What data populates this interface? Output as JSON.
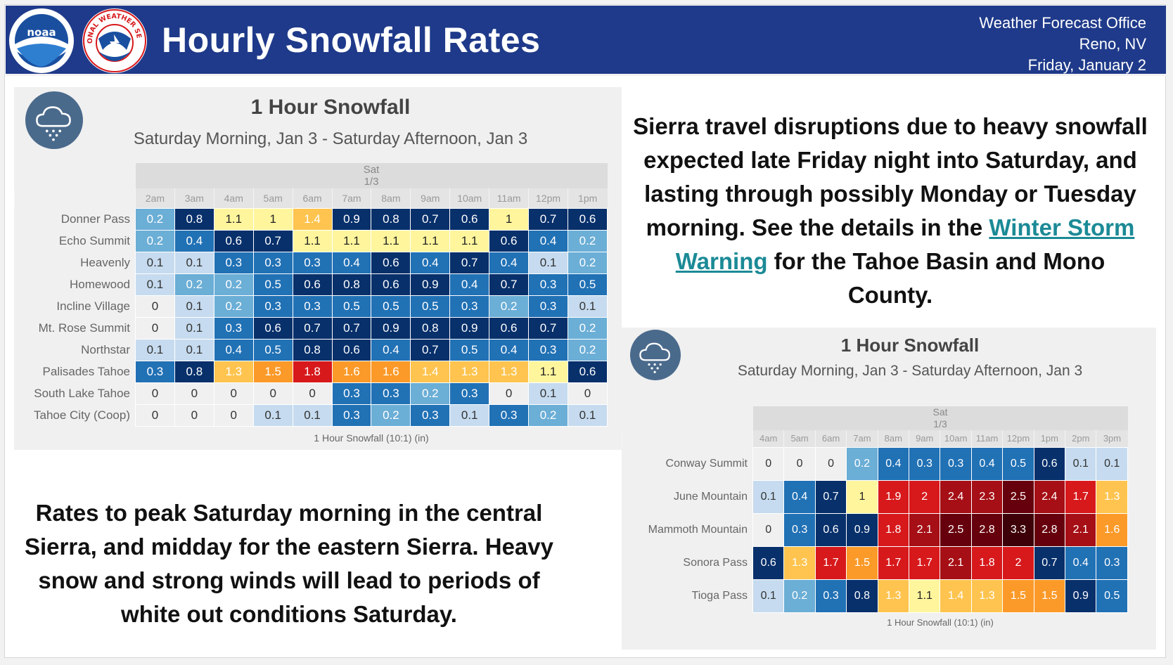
{
  "header": {
    "title": "Hourly Snowfall Rates",
    "office_lines": [
      "Weather Forecast Office",
      "Reno, NV",
      "Friday, January 2"
    ],
    "logos": {
      "noaa_text": "noaa",
      "nws_text": "NATIONAL WEATHER SERVICE"
    },
    "colors": {
      "banner": "#1f3a8a",
      "text": "#ffffff"
    }
  },
  "text_top": {
    "before_link": "Sierra travel disruptions due to heavy snowfall expected late Friday night into Saturday, and lasting through possibly Monday or Tuesday morning. See the details in the ",
    "link": "Winter Storm Warning",
    "after_link": " for the Tahoe Basin and Mono County."
  },
  "text_bottom": "Rates to peak Saturday morning in the central Sierra, and midday for the eastern Sierra. Heavy snow and strong winds will lead to periods of white out conditions Saturday.",
  "icons": {
    "cloud": "snow-cloud-icon"
  },
  "color_scale": [
    {
      "max": 0.15,
      "color": "#c6dbef",
      "text": "#333333"
    },
    {
      "max": 0.25,
      "color": "#6baed6",
      "text": "#ffffff"
    },
    {
      "max": 0.55,
      "color": "#2171b5",
      "text": "#ffffff"
    },
    {
      "max": 0.95,
      "color": "#08306b",
      "text": "#ffffff"
    },
    {
      "max": 1.25,
      "color": "#fff59d",
      "text": "#222222"
    },
    {
      "max": 1.45,
      "color": "#fec44f",
      "text": "#ffffff"
    },
    {
      "max": 1.65,
      "color": "#fb9a29",
      "text": "#ffffff"
    },
    {
      "max": 2.05,
      "color": "#d7191c",
      "text": "#ffffff"
    },
    {
      "max": 2.45,
      "color": "#a50f15",
      "text": "#ffffff"
    },
    {
      "max": 2.85,
      "color": "#67000d",
      "text": "#ffffff"
    },
    {
      "max": 99,
      "color": "#3d0008",
      "text": "#ffffff"
    }
  ],
  "chart_data": [
    {
      "type": "heatmap",
      "title": "1 Hour Snowfall",
      "subtitle": "Saturday Morning, Jan 3 - Saturday Afternoon, Jan 3",
      "day_label": "Sat",
      "date_label": "1/3",
      "caption": "1 Hour Snowfall (10:1) (in)",
      "units": "in",
      "categories": [
        "2am",
        "3am",
        "4am",
        "5am",
        "6am",
        "7am",
        "8am",
        "9am",
        "10am",
        "11am",
        "12pm",
        "1pm"
      ],
      "series": [
        {
          "name": "Donner Pass",
          "values": [
            0.2,
            0.8,
            1.1,
            1,
            1.4,
            0.9,
            0.8,
            0.7,
            0.6,
            1,
            0.7,
            0.6
          ]
        },
        {
          "name": "Echo Summit",
          "values": [
            0.2,
            0.4,
            0.6,
            0.7,
            1.1,
            1.1,
            1.1,
            1.1,
            1.1,
            0.6,
            0.4,
            0.2
          ]
        },
        {
          "name": "Heavenly",
          "values": [
            0.1,
            0.1,
            0.3,
            0.3,
            0.3,
            0.4,
            0.6,
            0.4,
            0.7,
            0.4,
            0.1,
            0.2
          ]
        },
        {
          "name": "Homewood",
          "values": [
            0.1,
            0.2,
            0.2,
            0.5,
            0.6,
            0.8,
            0.6,
            0.9,
            0.4,
            0.7,
            0.3,
            0.5
          ]
        },
        {
          "name": "Incline Village",
          "values": [
            0,
            0.1,
            0.2,
            0.3,
            0.3,
            0.5,
            0.5,
            0.5,
            0.3,
            0.2,
            0.3,
            0.1
          ]
        },
        {
          "name": "Mt. Rose Summit",
          "values": [
            0,
            0.1,
            0.3,
            0.6,
            0.7,
            0.7,
            0.9,
            0.8,
            0.9,
            0.6,
            0.7,
            0.2
          ]
        },
        {
          "name": "Northstar",
          "values": [
            0.1,
            0.1,
            0.4,
            0.5,
            0.8,
            0.6,
            0.4,
            0.7,
            0.5,
            0.4,
            0.3,
            0.2
          ]
        },
        {
          "name": "Palisades Tahoe",
          "values": [
            0.3,
            0.8,
            1.3,
            1.5,
            1.8,
            1.6,
            1.6,
            1.4,
            1.3,
            1.3,
            1.1,
            0.6
          ]
        },
        {
          "name": "South Lake Tahoe",
          "values": [
            0,
            0,
            0,
            0,
            0,
            0.3,
            0.3,
            0.2,
            0.3,
            0,
            0.1,
            0
          ]
        },
        {
          "name": "Tahoe City (Coop)",
          "values": [
            0,
            0,
            0,
            0.1,
            0.1,
            0.3,
            0.2,
            0.3,
            0.1,
            0.3,
            0.2,
            0.1
          ]
        }
      ]
    },
    {
      "type": "heatmap",
      "title": "1 Hour Snowfall",
      "subtitle": "Saturday Morning, Jan 3 - Saturday Afternoon, Jan 3",
      "day_label": "Sat",
      "date_label": "1/3",
      "caption": "1 Hour Snowfall (10:1) (in)",
      "units": "in",
      "categories": [
        "4am",
        "5am",
        "6am",
        "7am",
        "8am",
        "9am",
        "10am",
        "11am",
        "12pm",
        "1pm",
        "2pm",
        "3pm"
      ],
      "series": [
        {
          "name": "Conway Summit",
          "values": [
            0,
            0,
            0,
            0.2,
            0.4,
            0.3,
            0.3,
            0.4,
            0.5,
            0.6,
            0.1,
            0.1
          ]
        },
        {
          "name": "June Mountain",
          "values": [
            0.1,
            0.4,
            0.7,
            1,
            1.9,
            2,
            2.4,
            2.3,
            2.5,
            2.4,
            1.7,
            1.3
          ]
        },
        {
          "name": "Mammoth Mountain",
          "values": [
            0,
            0.3,
            0.6,
            0.9,
            1.8,
            2.1,
            2.5,
            2.8,
            3.3,
            2.8,
            2.1,
            1.6
          ]
        },
        {
          "name": "Sonora Pass",
          "values": [
            0.6,
            1.3,
            1.7,
            1.5,
            1.7,
            1.7,
            2.1,
            1.8,
            2,
            0.7,
            0.4,
            0.3
          ]
        },
        {
          "name": "Tioga Pass",
          "values": [
            0.1,
            0.2,
            0.3,
            0.8,
            1.3,
            1.1,
            1.4,
            1.3,
            1.5,
            1.5,
            0.9,
            0.5
          ]
        }
      ]
    }
  ]
}
